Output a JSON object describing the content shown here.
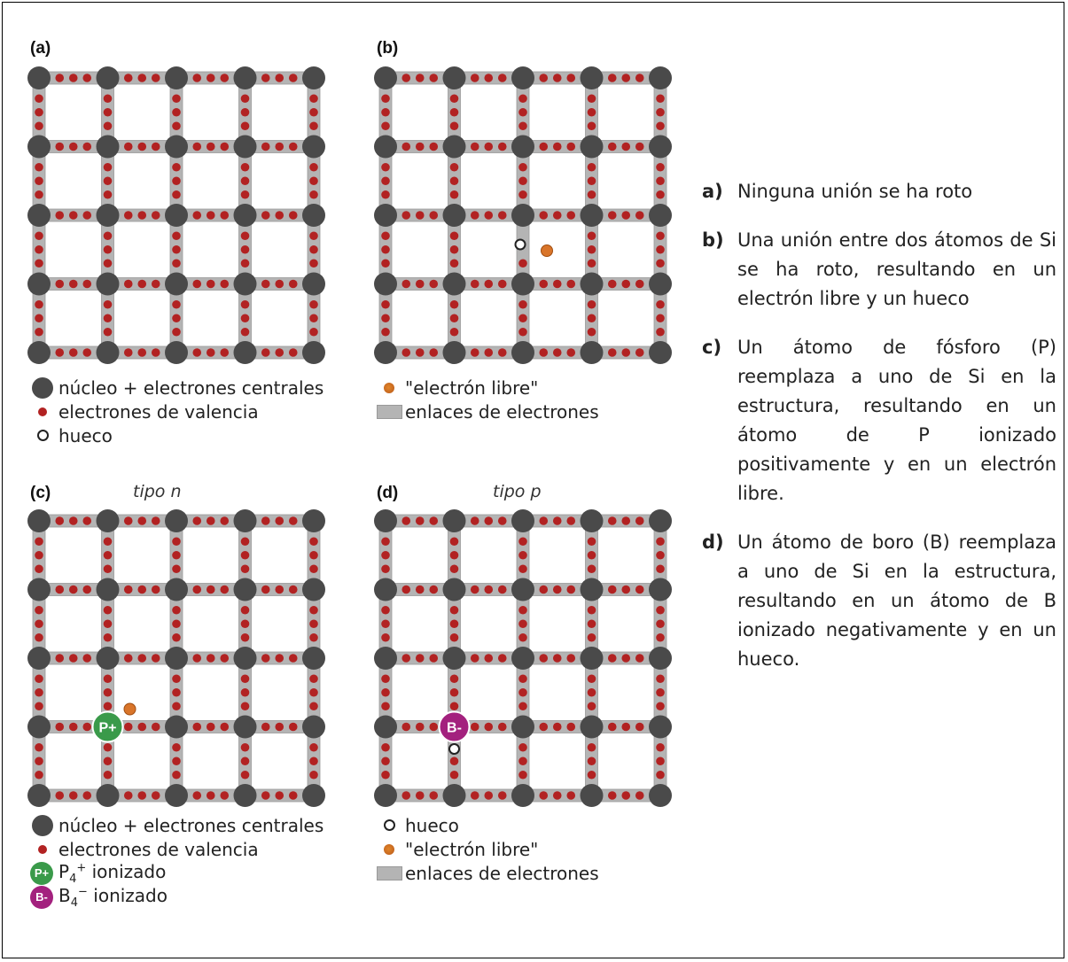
{
  "panels": {
    "a": {
      "label": "(a)",
      "subtitle": ""
    },
    "b": {
      "label": "(b)",
      "subtitle": ""
    },
    "c": {
      "label": "(c)",
      "subtitle": "tipo n"
    },
    "d": {
      "label": "(d)",
      "subtitle": "tipo p"
    }
  },
  "dopants": {
    "p_text": "P+",
    "b_text": "B-"
  },
  "legend_a": {
    "nucleus": "núcleo + electrones centrales",
    "valence": "electrones de valencia",
    "hole": "hueco"
  },
  "legend_b": {
    "free": "\"electrón libre\"",
    "bonds": "enlaces de electrones"
  },
  "legend_c": {
    "nucleus": "núcleo + electrones centrales",
    "valence": "electrones de valencia",
    "p_ion_base": "P",
    "p_ion_sub": "4",
    "p_ion_sup": "+",
    "p_ion_text": " ionizado",
    "b_ion_base": "B",
    "b_ion_sub": "4",
    "b_ion_sup": "−",
    "b_ion_text": " ionizado"
  },
  "legend_d": {
    "hole": "hueco",
    "free": "\"electrón libre\"",
    "bonds": "enlaces de electrones"
  },
  "descriptions": [
    {
      "key": "a)",
      "text": "Ninguna unión se ha roto"
    },
    {
      "key": "b)",
      "text": "Una unión entre dos átomos de Si se ha roto, resultando en un electrón libre y un hueco"
    },
    {
      "key": "c)",
      "text": "Un átomo de fósforo (P) reemplaza a uno de Si en la estructura, resultando en un átomo de P ionizado positivamente y en un electrón libre."
    },
    {
      "key": "d)",
      "text": "Un átomo de boro (B) reemplaza a uno de Si en la estructura, resultando en un átomo de B ionizado negativamente y en un hueco."
    }
  ],
  "colors": {
    "nucleus": "#4a4a4a",
    "valence": "#b22222",
    "bond": "#b4b4b4",
    "free_electron": "#d9752a",
    "p_ion": "#3a9a4a",
    "b_ion": "#a3217e"
  }
}
